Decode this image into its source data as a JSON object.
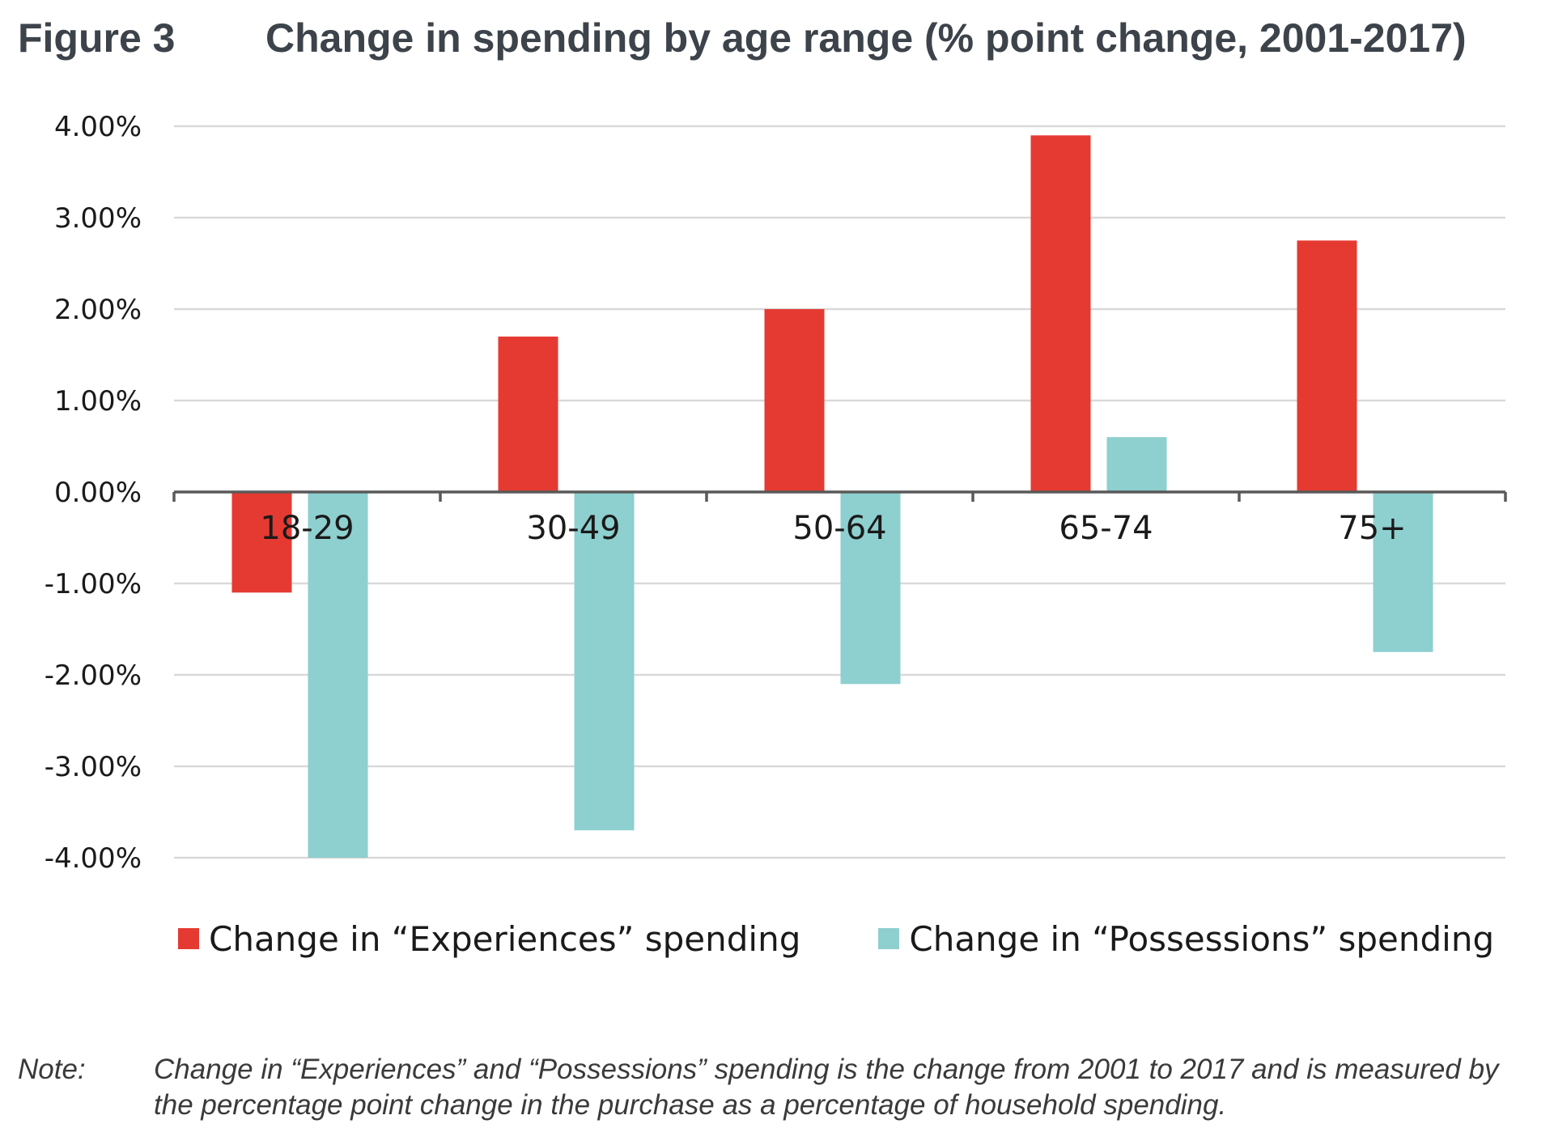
{
  "figure": {
    "label": "Figure 3",
    "title": "Change in spending by age range (% point change, 2001-2017)"
  },
  "chart_data": {
    "type": "bar",
    "categories": [
      "18-29",
      "30-49",
      "50-64",
      "65-74",
      "75+"
    ],
    "series": [
      {
        "name": "Change in “Experiences” spending",
        "color": "#e53a32",
        "values": [
          -1.1,
          1.7,
          2.0,
          3.9,
          2.75
        ]
      },
      {
        "name": "Change in “Possessions” spending",
        "color": "#8ecfcf",
        "values": [
          -4.0,
          -3.7,
          -2.1,
          0.6,
          -1.75
        ]
      }
    ],
    "yticks": [
      4,
      3,
      2,
      1,
      0,
      -1,
      -2,
      -3,
      -4
    ],
    "ytick_labels": [
      "4.00%",
      "3.00%",
      "2.00%",
      "1.00%",
      "0.00%",
      "-1.00%",
      "-2.00%",
      "-3.00%",
      "-4.00%"
    ],
    "ylim": [
      -4,
      4
    ],
    "grid": true,
    "legend_position": "bottom",
    "category_label_position": "below zero line"
  },
  "note": {
    "label": "Note:",
    "text": "Change in “Experiences” and “Possessions” spending is the change from 2001 to 2017 and is measured by the percentage point change in the purchase as a percentage of household spending."
  }
}
